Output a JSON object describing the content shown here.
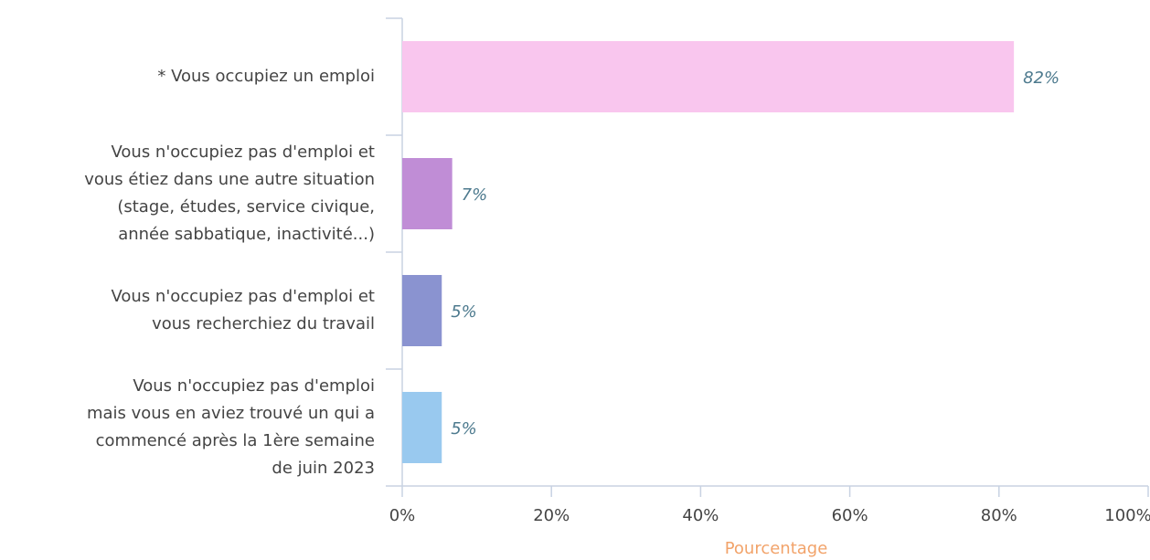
{
  "chart_data": {
    "type": "bar",
    "orientation": "horizontal",
    "categories": [
      "* Vous occupiez un emploi",
      "Vous n'occupiez pas d'emploi et\nvous étiez dans une autre situation\n(stage, études, service civique,\nannée sabbatique, inactivité...)",
      "Vous n'occupiez pas d'emploi et\nvous recherchiez du travail",
      "Vous n'occupiez pas d'emploi\nmais vous en aviez trouvé un qui a\ncommencé après la 1ère semaine\nde juin 2023"
    ],
    "values": [
      82,
      6.7,
      5.3,
      5.3
    ],
    "value_labels": [
      "82%",
      "7%",
      "5%",
      "5%"
    ],
    "colors": [
      "#f9c6ee",
      "#c08dd6",
      "#8a93d0",
      "#99c9ef"
    ],
    "xlabel": "Pourcentage",
    "xlim": [
      0,
      100
    ],
    "xticks": [
      {
        "value": 0,
        "label": "0%"
      },
      {
        "value": 20,
        "label": "20%"
      },
      {
        "value": 40,
        "label": "40%"
      },
      {
        "value": 60,
        "label": "60%"
      },
      {
        "value": 80,
        "label": "80%"
      },
      {
        "value": 100,
        "label": "100%"
      }
    ]
  }
}
